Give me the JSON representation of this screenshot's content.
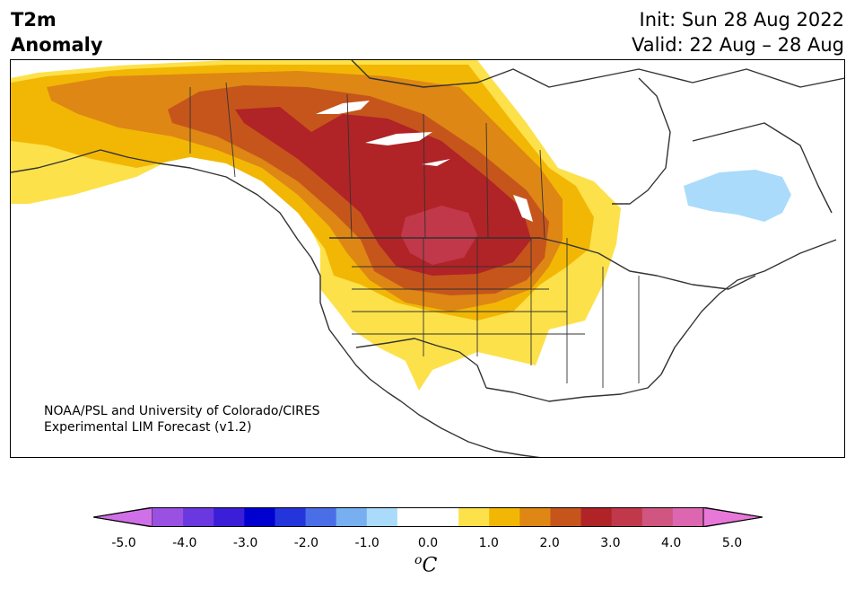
{
  "title": {
    "line1": "T2m",
    "line2": "Anomaly"
  },
  "date_info": {
    "init": "Init: Sun 28 Aug 2022",
    "valid": "Valid: 22 Aug – 28 Aug"
  },
  "credit": {
    "line1": "NOAA/PSL and University of Colorado/CIRES",
    "line2": "Experimental LIM Forecast (v1.2)"
  },
  "colorbar": {
    "labels": [
      "-5.0",
      "-4.0",
      "-3.0",
      "-2.0",
      "-1.0",
      "0.0",
      "1.0",
      "2.0",
      "3.0",
      "4.0",
      "5.0"
    ],
    "units_base": "C",
    "units_sup": "o",
    "colors": [
      "#d070e8",
      "#9a50e0",
      "#6a38e0",
      "#3a1ed8",
      "#0000d0",
      "#2535dc",
      "#4a6ee8",
      "#78aff0",
      "#aadbfa",
      "#ffffff",
      "#ffffff",
      "#fde14a",
      "#f2b705",
      "#de8714",
      "#c6551c",
      "#b02326",
      "#c0384a",
      "#d05580",
      "#dc66b0",
      "#e878d8"
    ]
  },
  "colors": {
    "anom_05": "#fde14a",
    "anom_10": "#f2b705",
    "anom_15": "#de8714",
    "anom_20": "#c6551c",
    "anom_25": "#b02326",
    "anom_30": "#c0384a",
    "anom_neg": "#aadbfa"
  }
}
